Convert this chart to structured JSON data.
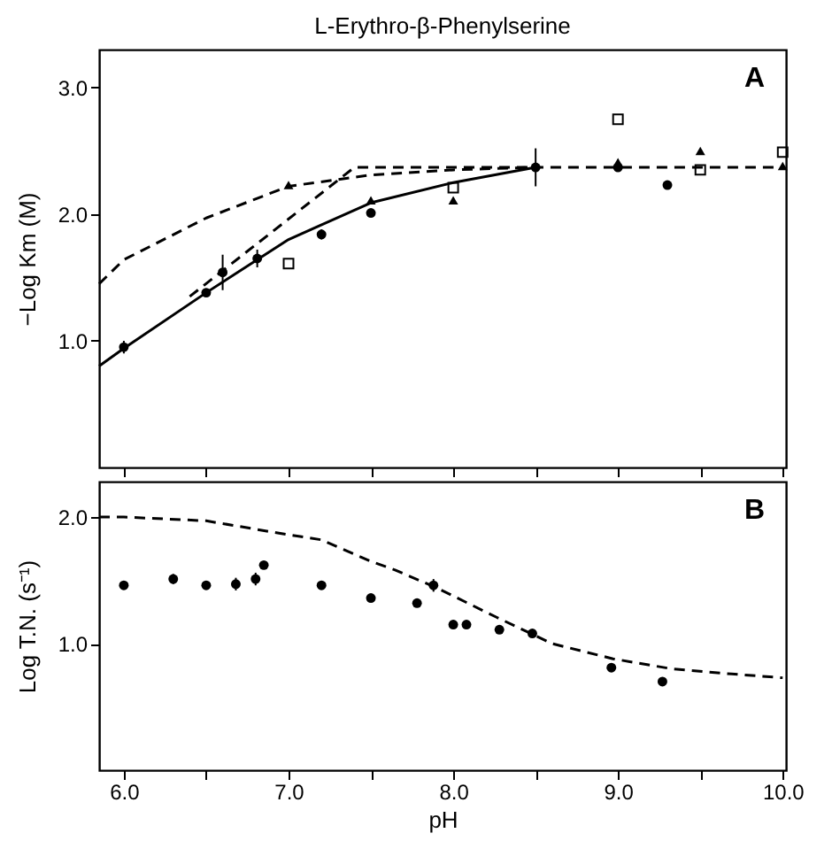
{
  "chart_data": [
    {
      "type": "scatter",
      "title": "L-Erythro-β-Phenylserine",
      "ylabel": "−Log Km (M)",
      "annotations": [
        "A"
      ],
      "xlim": [
        5.85,
        10.02
      ],
      "ylim": [
        0,
        3.3
      ],
      "xticks": [
        {
          "value": 6,
          "label": null
        },
        {
          "value": 6.5,
          "label": null
        },
        {
          "value": 7,
          "label": null
        },
        {
          "value": 7.5,
          "label": null
        },
        {
          "value": 8,
          "label": null
        },
        {
          "value": 8.5,
          "label": null
        },
        {
          "value": 9,
          "label": null
        },
        {
          "value": 9.5,
          "label": null
        },
        {
          "value": 10,
          "label": null
        }
      ],
      "yticks": [
        {
          "value": 1,
          "label": "1.0"
        },
        {
          "value": 2,
          "label": "2.0"
        },
        {
          "value": 3,
          "label": "3.0"
        }
      ],
      "tick_labels": "y",
      "grid": false,
      "series": [
        {
          "marker": "circle",
          "color": "#000000",
          "x": [
            6.0,
            6.5,
            6.6,
            6.81,
            7.2,
            7.5,
            8.5,
            9.0,
            9.3
          ],
          "values": [
            0.95,
            1.38,
            1.54,
            1.65,
            1.84,
            2.01,
            2.37,
            2.37,
            2.23
          ],
          "errors": [
            0.05,
            null,
            0.14,
            0.07,
            0.04,
            null,
            0.15,
            null,
            null
          ]
        },
        {
          "marker": "triangle",
          "color": "#000000",
          "x": [
            7.0,
            7.5,
            8.0,
            9.0,
            9.5,
            10.0
          ],
          "values": [
            2.23,
            2.11,
            2.11,
            2.41,
            2.5,
            2.38
          ]
        },
        {
          "marker": "square",
          "color": "#000000",
          "x": [
            7.0,
            8.0,
            9.0,
            9.5,
            10.0
          ],
          "values": [
            1.61,
            2.21,
            2.75,
            2.35,
            2.49
          ]
        },
        {
          "type": "line",
          "line_style": "solid",
          "color": "#000000",
          "x": [
            5.85,
            6.0,
            6.5,
            7.0,
            7.5,
            8.0,
            8.5
          ],
          "values": [
            0.8,
            0.94,
            1.38,
            1.8,
            2.09,
            2.25,
            2.37
          ]
        },
        {
          "type": "line",
          "line_style": "dashed",
          "color": "#000000",
          "x": [
            5.85,
            6.0,
            6.5,
            7.0,
            7.5,
            8.0,
            8.5,
            9.0,
            9.5,
            10.0
          ],
          "values": [
            1.45,
            1.64,
            1.97,
            2.22,
            2.31,
            2.35,
            2.37,
            2.37,
            2.37,
            2.37
          ]
        },
        {
          "type": "line",
          "line_style": "dashed",
          "color": "#000000",
          "x": [
            6.4,
            7.4,
            8.5
          ],
          "values": [
            1.35,
            2.37,
            2.37
          ]
        }
      ]
    },
    {
      "type": "scatter",
      "xlabel": "pH",
      "ylabel": "Log T.N. (s⁻¹)",
      "annotations": [
        "B"
      ],
      "xlim": [
        5.85,
        10.02
      ],
      "ylim": [
        0,
        2.28
      ],
      "xticks": [
        {
          "value": 6,
          "label": "6.0"
        },
        {
          "value": 6.5,
          "label": null
        },
        {
          "value": 7,
          "label": "7.0"
        },
        {
          "value": 7.5,
          "label": null
        },
        {
          "value": 8,
          "label": "8.0"
        },
        {
          "value": 8.5,
          "label": null
        },
        {
          "value": 9,
          "label": "9.0"
        },
        {
          "value": 9.5,
          "label": null
        },
        {
          "value": 10,
          "label": "10.0"
        }
      ],
      "yticks": [
        {
          "value": 1,
          "label": "1.0"
        },
        {
          "value": 2,
          "label": "2.0"
        }
      ],
      "grid": false,
      "series": [
        {
          "marker": "circle",
          "color": "#000000",
          "x": [
            6.0,
            6.3,
            6.5,
            6.68,
            6.8,
            6.85,
            7.2,
            7.5,
            7.78,
            7.88,
            8.0,
            8.08,
            8.28,
            8.48,
            8.96,
            9.27
          ],
          "values": [
            1.46,
            1.51,
            1.46,
            1.47,
            1.51,
            1.62,
            1.46,
            1.36,
            1.32,
            1.46,
            1.15,
            1.15,
            1.11,
            1.08,
            0.81,
            0.7
          ],
          "errors": [
            null,
            0.04,
            null,
            0.05,
            0.05,
            null,
            null,
            null,
            null,
            0.05,
            null,
            null,
            null,
            null,
            null,
            null
          ]
        },
        {
          "type": "line",
          "line_style": "dashed",
          "color": "#000000",
          "x": [
            5.85,
            6.0,
            6.5,
            7.0,
            7.2,
            7.5,
            7.65,
            7.9,
            8.26,
            8.6,
            8.97,
            9.33,
            9.69,
            10.0
          ],
          "values": [
            2.0,
            2.0,
            1.97,
            1.86,
            1.82,
            1.65,
            1.58,
            1.44,
            1.21,
            1.0,
            0.88,
            0.8,
            0.76,
            0.73
          ]
        }
      ]
    }
  ]
}
